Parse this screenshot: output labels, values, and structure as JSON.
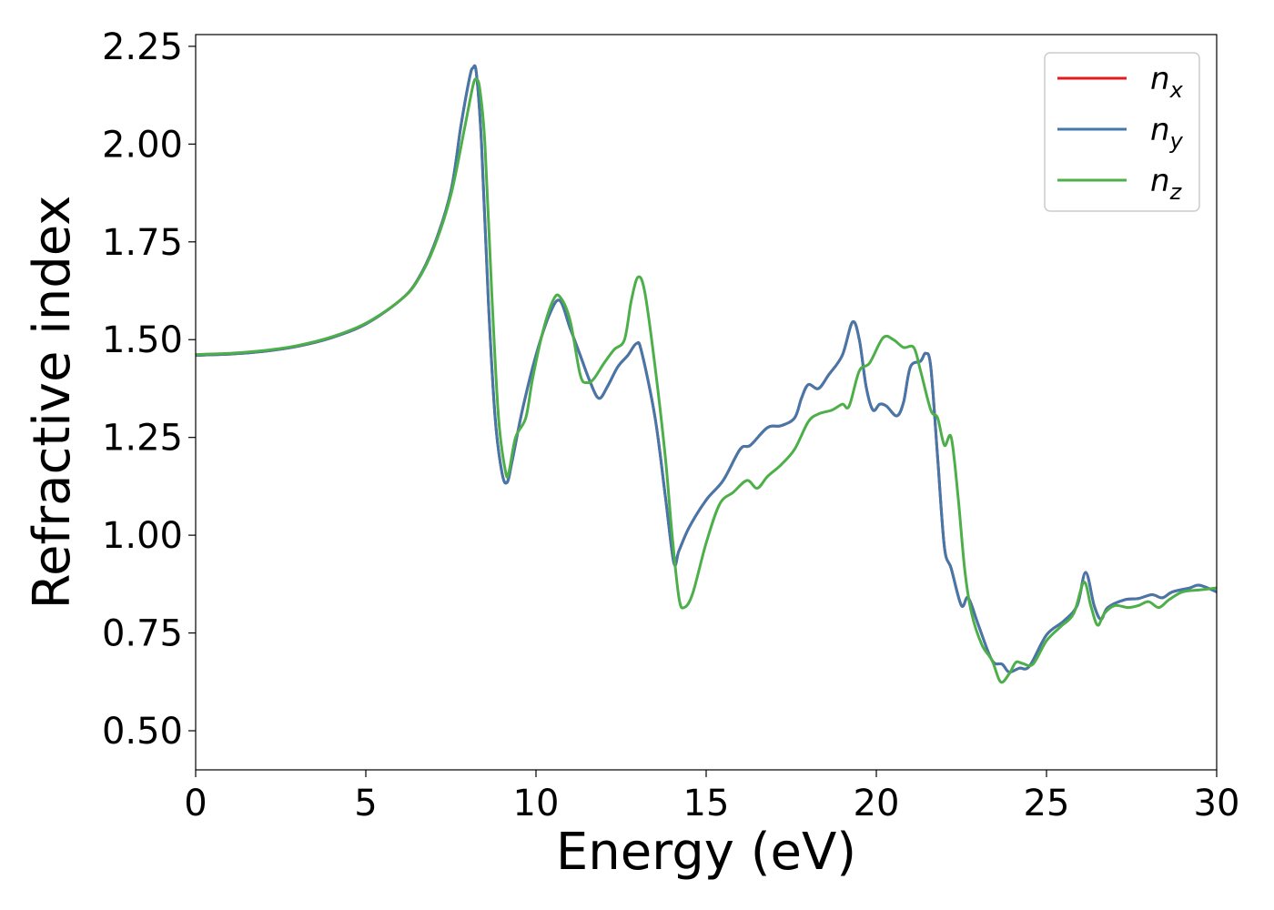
{
  "chart_data": {
    "type": "line",
    "xlabel": "Energy (eV)",
    "ylabel": "Refractive index",
    "xlim": [
      0,
      30
    ],
    "ylim": [
      0.4,
      2.28
    ],
    "xticks": [
      0,
      5,
      10,
      15,
      20,
      25,
      30
    ],
    "yticks": [
      0.5,
      0.75,
      1.0,
      1.25,
      1.5,
      1.75,
      2.0,
      2.25
    ],
    "xtick_labels": [
      "0",
      "5",
      "10",
      "15",
      "20",
      "25",
      "30"
    ],
    "ytick_labels": [
      "0.50",
      "0.75",
      "1.00",
      "1.25",
      "1.50",
      "1.75",
      "2.00",
      "2.25"
    ],
    "grid": false,
    "legend_position": "top-right",
    "series": [
      {
        "name": "n_x",
        "label_base": "n",
        "label_sub": "x",
        "color": "#e41a1c",
        "points": [
          [
            0,
            1.46
          ],
          [
            1,
            1.463
          ],
          [
            2,
            1.47
          ],
          [
            3,
            1.483
          ],
          [
            4,
            1.505
          ],
          [
            5,
            1.54
          ],
          [
            6,
            1.6
          ],
          [
            6.5,
            1.65
          ],
          [
            7,
            1.74
          ],
          [
            7.5,
            1.88
          ],
          [
            7.8,
            2.05
          ],
          [
            8.05,
            2.17
          ],
          [
            8.15,
            2.195
          ],
          [
            8.25,
            2.18
          ],
          [
            8.4,
            2.0
          ],
          [
            8.6,
            1.6
          ],
          [
            8.8,
            1.3
          ],
          [
            9.0,
            1.16
          ],
          [
            9.15,
            1.135
          ],
          [
            9.3,
            1.19
          ],
          [
            9.6,
            1.32
          ],
          [
            10.0,
            1.46
          ],
          [
            10.4,
            1.565
          ],
          [
            10.7,
            1.6
          ],
          [
            11.0,
            1.53
          ],
          [
            11.3,
            1.46
          ],
          [
            11.6,
            1.39
          ],
          [
            11.85,
            1.35
          ],
          [
            12.1,
            1.38
          ],
          [
            12.4,
            1.43
          ],
          [
            12.7,
            1.46
          ],
          [
            12.95,
            1.49
          ],
          [
            13.1,
            1.47
          ],
          [
            13.5,
            1.3
          ],
          [
            13.8,
            1.1
          ],
          [
            14.05,
            0.93
          ],
          [
            14.2,
            0.96
          ],
          [
            14.5,
            1.02
          ],
          [
            15.0,
            1.09
          ],
          [
            15.5,
            1.14
          ],
          [
            16.0,
            1.22
          ],
          [
            16.3,
            1.23
          ],
          [
            16.8,
            1.275
          ],
          [
            17.2,
            1.28
          ],
          [
            17.6,
            1.3
          ],
          [
            17.8,
            1.35
          ],
          [
            18.0,
            1.385
          ],
          [
            18.3,
            1.375
          ],
          [
            18.6,
            1.41
          ],
          [
            19.0,
            1.46
          ],
          [
            19.3,
            1.545
          ],
          [
            19.5,
            1.5
          ],
          [
            19.7,
            1.38
          ],
          [
            19.9,
            1.32
          ],
          [
            20.1,
            1.335
          ],
          [
            20.3,
            1.33
          ],
          [
            20.6,
            1.305
          ],
          [
            20.8,
            1.34
          ],
          [
            21.0,
            1.43
          ],
          [
            21.3,
            1.445
          ],
          [
            21.45,
            1.465
          ],
          [
            21.6,
            1.43
          ],
          [
            21.8,
            1.2
          ],
          [
            22.0,
            0.97
          ],
          [
            22.2,
            0.915
          ],
          [
            22.5,
            0.82
          ],
          [
            22.7,
            0.84
          ],
          [
            23.0,
            0.77
          ],
          [
            23.4,
            0.68
          ],
          [
            23.7,
            0.67
          ],
          [
            23.9,
            0.65
          ],
          [
            24.2,
            0.66
          ],
          [
            24.5,
            0.665
          ],
          [
            25.0,
            0.745
          ],
          [
            25.5,
            0.78
          ],
          [
            25.9,
            0.82
          ],
          [
            26.15,
            0.905
          ],
          [
            26.4,
            0.82
          ],
          [
            26.6,
            0.785
          ],
          [
            26.8,
            0.815
          ],
          [
            27.3,
            0.835
          ],
          [
            27.7,
            0.838
          ],
          [
            28.1,
            0.848
          ],
          [
            28.4,
            0.84
          ],
          [
            28.7,
            0.855
          ],
          [
            29.2,
            0.865
          ],
          [
            29.5,
            0.872
          ],
          [
            30,
            0.855
          ]
        ]
      },
      {
        "name": "n_y",
        "label_base": "n",
        "label_sub": "y",
        "color": "#4477aa",
        "points": [
          [
            0,
            1.46
          ],
          [
            1,
            1.463
          ],
          [
            2,
            1.47
          ],
          [
            3,
            1.483
          ],
          [
            4,
            1.505
          ],
          [
            5,
            1.54
          ],
          [
            6,
            1.6
          ],
          [
            6.5,
            1.65
          ],
          [
            7,
            1.74
          ],
          [
            7.5,
            1.88
          ],
          [
            7.8,
            2.05
          ],
          [
            8.05,
            2.17
          ],
          [
            8.15,
            2.195
          ],
          [
            8.25,
            2.18
          ],
          [
            8.4,
            2.0
          ],
          [
            8.6,
            1.6
          ],
          [
            8.8,
            1.3
          ],
          [
            9.0,
            1.16
          ],
          [
            9.15,
            1.135
          ],
          [
            9.3,
            1.19
          ],
          [
            9.6,
            1.32
          ],
          [
            10.0,
            1.46
          ],
          [
            10.4,
            1.565
          ],
          [
            10.7,
            1.6
          ],
          [
            11.0,
            1.53
          ],
          [
            11.3,
            1.46
          ],
          [
            11.6,
            1.39
          ],
          [
            11.85,
            1.35
          ],
          [
            12.1,
            1.38
          ],
          [
            12.4,
            1.43
          ],
          [
            12.7,
            1.46
          ],
          [
            12.95,
            1.49
          ],
          [
            13.1,
            1.47
          ],
          [
            13.5,
            1.3
          ],
          [
            13.8,
            1.1
          ],
          [
            14.05,
            0.93
          ],
          [
            14.2,
            0.96
          ],
          [
            14.5,
            1.02
          ],
          [
            15.0,
            1.09
          ],
          [
            15.5,
            1.14
          ],
          [
            16.0,
            1.22
          ],
          [
            16.3,
            1.23
          ],
          [
            16.8,
            1.275
          ],
          [
            17.2,
            1.28
          ],
          [
            17.6,
            1.3
          ],
          [
            17.8,
            1.35
          ],
          [
            18.0,
            1.385
          ],
          [
            18.3,
            1.375
          ],
          [
            18.6,
            1.41
          ],
          [
            19.0,
            1.46
          ],
          [
            19.3,
            1.545
          ],
          [
            19.5,
            1.5
          ],
          [
            19.7,
            1.38
          ],
          [
            19.9,
            1.32
          ],
          [
            20.1,
            1.335
          ],
          [
            20.3,
            1.33
          ],
          [
            20.6,
            1.305
          ],
          [
            20.8,
            1.34
          ],
          [
            21.0,
            1.43
          ],
          [
            21.3,
            1.445
          ],
          [
            21.45,
            1.465
          ],
          [
            21.6,
            1.43
          ],
          [
            21.8,
            1.2
          ],
          [
            22.0,
            0.97
          ],
          [
            22.2,
            0.915
          ],
          [
            22.5,
            0.82
          ],
          [
            22.7,
            0.84
          ],
          [
            23.0,
            0.77
          ],
          [
            23.4,
            0.68
          ],
          [
            23.7,
            0.67
          ],
          [
            23.9,
            0.65
          ],
          [
            24.2,
            0.66
          ],
          [
            24.5,
            0.665
          ],
          [
            25.0,
            0.745
          ],
          [
            25.5,
            0.78
          ],
          [
            25.9,
            0.82
          ],
          [
            26.15,
            0.905
          ],
          [
            26.4,
            0.82
          ],
          [
            26.6,
            0.785
          ],
          [
            26.8,
            0.815
          ],
          [
            27.3,
            0.835
          ],
          [
            27.7,
            0.838
          ],
          [
            28.1,
            0.848
          ],
          [
            28.4,
            0.84
          ],
          [
            28.7,
            0.855
          ],
          [
            29.2,
            0.865
          ],
          [
            29.5,
            0.872
          ],
          [
            30,
            0.855
          ]
        ]
      },
      {
        "name": "n_z",
        "label_base": "n",
        "label_sub": "z",
        "color": "#4daf4a",
        "points": [
          [
            0,
            1.462
          ],
          [
            1,
            1.465
          ],
          [
            2,
            1.472
          ],
          [
            3,
            1.485
          ],
          [
            4,
            1.507
          ],
          [
            5,
            1.542
          ],
          [
            6,
            1.6
          ],
          [
            6.5,
            1.648
          ],
          [
            7,
            1.735
          ],
          [
            7.5,
            1.87
          ],
          [
            7.9,
            2.04
          ],
          [
            8.15,
            2.15
          ],
          [
            8.25,
            2.165
          ],
          [
            8.35,
            2.14
          ],
          [
            8.5,
            2.0
          ],
          [
            8.7,
            1.62
          ],
          [
            8.9,
            1.3
          ],
          [
            9.1,
            1.165
          ],
          [
            9.2,
            1.16
          ],
          [
            9.4,
            1.25
          ],
          [
            9.7,
            1.3
          ],
          [
            9.9,
            1.4
          ],
          [
            10.2,
            1.52
          ],
          [
            10.5,
            1.6
          ],
          [
            10.7,
            1.61
          ],
          [
            11.0,
            1.55
          ],
          [
            11.3,
            1.41
          ],
          [
            11.5,
            1.39
          ],
          [
            11.7,
            1.4
          ],
          [
            12.0,
            1.44
          ],
          [
            12.3,
            1.475
          ],
          [
            12.6,
            1.5
          ],
          [
            12.8,
            1.6
          ],
          [
            13.0,
            1.66
          ],
          [
            13.2,
            1.62
          ],
          [
            13.5,
            1.43
          ],
          [
            13.8,
            1.2
          ],
          [
            14.0,
            1.0
          ],
          [
            14.2,
            0.84
          ],
          [
            14.35,
            0.815
          ],
          [
            14.6,
            0.85
          ],
          [
            15.0,
            0.98
          ],
          [
            15.4,
            1.08
          ],
          [
            15.8,
            1.11
          ],
          [
            16.2,
            1.14
          ],
          [
            16.5,
            1.12
          ],
          [
            16.8,
            1.15
          ],
          [
            17.2,
            1.18
          ],
          [
            17.6,
            1.22
          ],
          [
            18.0,
            1.29
          ],
          [
            18.3,
            1.31
          ],
          [
            18.7,
            1.32
          ],
          [
            19.0,
            1.335
          ],
          [
            19.2,
            1.33
          ],
          [
            19.5,
            1.42
          ],
          [
            19.8,
            1.44
          ],
          [
            20.2,
            1.505
          ],
          [
            20.5,
            1.5
          ],
          [
            20.8,
            1.48
          ],
          [
            21.1,
            1.48
          ],
          [
            21.3,
            1.42
          ],
          [
            21.6,
            1.32
          ],
          [
            21.8,
            1.3
          ],
          [
            22.0,
            1.23
          ],
          [
            22.2,
            1.25
          ],
          [
            22.4,
            1.1
          ],
          [
            22.6,
            0.91
          ],
          [
            22.8,
            0.8
          ],
          [
            23.1,
            0.72
          ],
          [
            23.4,
            0.68
          ],
          [
            23.65,
            0.625
          ],
          [
            23.9,
            0.645
          ],
          [
            24.1,
            0.675
          ],
          [
            24.3,
            0.672
          ],
          [
            24.6,
            0.67
          ],
          [
            25.0,
            0.73
          ],
          [
            25.4,
            0.765
          ],
          [
            25.8,
            0.8
          ],
          [
            26.1,
            0.88
          ],
          [
            26.3,
            0.82
          ],
          [
            26.5,
            0.77
          ],
          [
            26.7,
            0.8
          ],
          [
            27.0,
            0.82
          ],
          [
            27.4,
            0.815
          ],
          [
            27.7,
            0.82
          ],
          [
            28.0,
            0.83
          ],
          [
            28.3,
            0.815
          ],
          [
            28.6,
            0.835
          ],
          [
            29.0,
            0.855
          ],
          [
            29.5,
            0.86
          ],
          [
            30,
            0.865
          ]
        ]
      }
    ]
  }
}
